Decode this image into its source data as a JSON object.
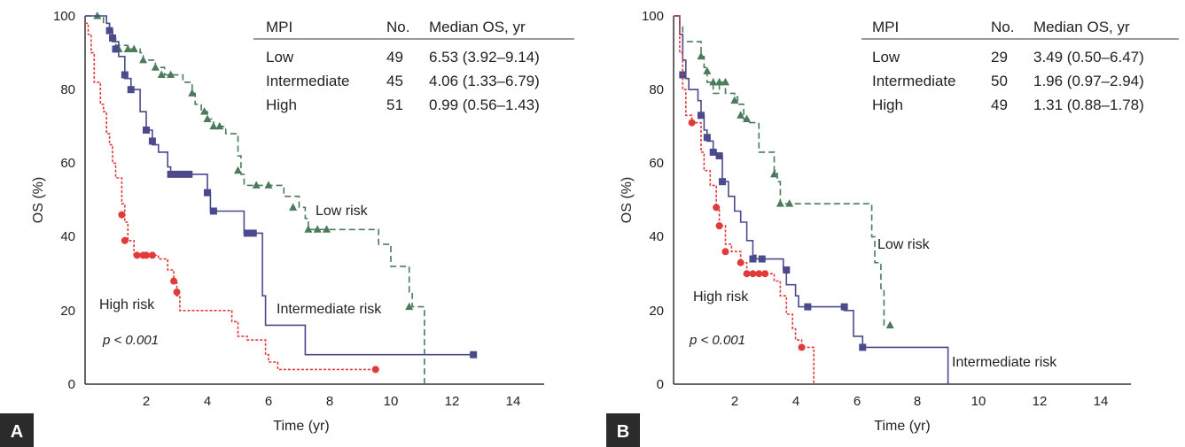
{
  "chart_data": [
    {
      "type": "line",
      "subtype": "kaplan-meier",
      "panel": "A",
      "xlabel": "Time (yr)",
      "ylabel": "OS (%)",
      "xlim": [
        0,
        15
      ],
      "ylim": [
        0,
        100
      ],
      "xticks": [
        2,
        4,
        6,
        8,
        10,
        12,
        14
      ],
      "yticks": [
        0,
        20,
        40,
        60,
        80,
        100
      ],
      "table": {
        "headers": [
          "MPI",
          "No.",
          "Median OS, yr"
        ],
        "rows": [
          [
            "Low",
            "49",
            "6.53 (3.92–9.14)"
          ],
          [
            "Intermediate",
            "45",
            "4.06 (1.33–6.79)"
          ],
          [
            "High",
            "51",
            "0.99 (0.56–1.43)"
          ]
        ]
      },
      "pvalue": "p < 0.001",
      "annotations": [
        "Low risk",
        "Intermediate risk",
        "High risk"
      ],
      "series": [
        {
          "name": "Low risk",
          "color": "#4a7b5a",
          "style": "dashed",
          "marker": "triangle",
          "steps": [
            [
              0,
              100
            ],
            [
              0.5,
              100
            ],
            [
              0.6,
              98
            ],
            [
              0.8,
              96
            ],
            [
              0.9,
              94
            ],
            [
              1.0,
              92
            ],
            [
              1.4,
              91
            ],
            [
              1.8,
              90
            ],
            [
              1.9,
              88
            ],
            [
              2.3,
              86
            ],
            [
              2.6,
              84
            ],
            [
              3.2,
              82
            ],
            [
              3.5,
              79
            ],
            [
              3.6,
              76
            ],
            [
              3.8,
              74
            ],
            [
              4.0,
              72
            ],
            [
              4.2,
              70
            ],
            [
              4.6,
              68
            ],
            [
              5.0,
              62
            ],
            [
              5.1,
              57
            ],
            [
              5.2,
              54
            ],
            [
              6.5,
              51
            ],
            [
              7.0,
              48
            ],
            [
              7.2,
              45
            ],
            [
              7.3,
              42
            ],
            [
              9.6,
              38
            ],
            [
              10.0,
              32
            ],
            [
              10.6,
              25
            ],
            [
              10.7,
              21
            ],
            [
              11.1,
              0
            ]
          ],
          "censors": [
            [
              0.4,
              100
            ],
            [
              1.1,
              91
            ],
            [
              1.4,
              91
            ],
            [
              1.6,
              91
            ],
            [
              1.9,
              88
            ],
            [
              2.3,
              86
            ],
            [
              2.5,
              84
            ],
            [
              2.8,
              84
            ],
            [
              3.5,
              79
            ],
            [
              3.9,
              74
            ],
            [
              4.0,
              72
            ],
            [
              4.2,
              70
            ],
            [
              4.4,
              70
            ],
            [
              5.0,
              58
            ],
            [
              5.6,
              54
            ],
            [
              6.0,
              54
            ],
            [
              6.8,
              48
            ],
            [
              7.3,
              42
            ],
            [
              7.6,
              42
            ],
            [
              7.9,
              42
            ],
            [
              10.6,
              21
            ]
          ]
        },
        {
          "name": "Intermediate risk",
          "color": "#4a4a8c",
          "style": "solid",
          "marker": "square",
          "steps": [
            [
              0,
              100
            ],
            [
              0.5,
              100
            ],
            [
              0.7,
              98
            ],
            [
              0.8,
              96
            ],
            [
              0.9,
              93
            ],
            [
              1.1,
              89
            ],
            [
              1.3,
              83
            ],
            [
              1.5,
              80
            ],
            [
              1.8,
              74
            ],
            [
              2.0,
              69
            ],
            [
              2.2,
              65
            ],
            [
              2.4,
              63
            ],
            [
              2.7,
              59
            ],
            [
              2.8,
              57
            ],
            [
              4.0,
              52
            ],
            [
              4.1,
              47
            ],
            [
              5.2,
              41
            ],
            [
              5.8,
              24
            ],
            [
              5.9,
              16
            ],
            [
              7.2,
              8
            ],
            [
              12.8,
              8
            ]
          ],
          "censors": [
            [
              0.8,
              96
            ],
            [
              0.9,
              94
            ],
            [
              1.0,
              91
            ],
            [
              1.3,
              84
            ],
            [
              1.5,
              80
            ],
            [
              2.0,
              69
            ],
            [
              2.2,
              66
            ],
            [
              2.8,
              57
            ],
            [
              3.0,
              57
            ],
            [
              3.2,
              57
            ],
            [
              3.4,
              57
            ],
            [
              4.0,
              52
            ],
            [
              4.2,
              47
            ],
            [
              5.3,
              41
            ],
            [
              5.5,
              41
            ],
            [
              12.7,
              8
            ]
          ]
        },
        {
          "name": "High risk",
          "color": "#e03a3a",
          "style": "dotted",
          "marker": "circle",
          "steps": [
            [
              0,
              98
            ],
            [
              0.1,
              95
            ],
            [
              0.2,
              90
            ],
            [
              0.3,
              82
            ],
            [
              0.5,
              76
            ],
            [
              0.6,
              74
            ],
            [
              0.7,
              68
            ],
            [
              0.8,
              65
            ],
            [
              0.9,
              60
            ],
            [
              1.0,
              56
            ],
            [
              1.2,
              49
            ],
            [
              1.3,
              44
            ],
            [
              1.4,
              39
            ],
            [
              1.6,
              35
            ],
            [
              2.4,
              34
            ],
            [
              2.7,
              31
            ],
            [
              2.9,
              28
            ],
            [
              3.0,
              24
            ],
            [
              3.1,
              20
            ],
            [
              4.8,
              17
            ],
            [
              5.0,
              13
            ],
            [
              5.3,
              12
            ],
            [
              5.9,
              8
            ],
            [
              6.0,
              6
            ],
            [
              6.3,
              4
            ],
            [
              9.5,
              4
            ]
          ],
          "censors": [
            [
              1.2,
              46
            ],
            [
              1.3,
              39
            ],
            [
              1.7,
              35
            ],
            [
              1.9,
              35
            ],
            [
              2.0,
              35
            ],
            [
              2.2,
              35
            ],
            [
              2.9,
              28
            ],
            [
              3.0,
              25
            ],
            [
              9.5,
              4
            ]
          ]
        }
      ]
    },
    {
      "type": "line",
      "subtype": "kaplan-meier",
      "panel": "B",
      "xlabel": "Time (yr)",
      "ylabel": "OS (%)",
      "xlim": [
        0,
        15
      ],
      "ylim": [
        0,
        100
      ],
      "xticks": [
        2,
        4,
        6,
        8,
        10,
        12,
        14
      ],
      "yticks": [
        0,
        20,
        40,
        60,
        80,
        100
      ],
      "table": {
        "headers": [
          "MPI",
          "No.",
          "Median OS, yr"
        ],
        "rows": [
          [
            "Low",
            "29",
            "3.49 (0.50–6.47)"
          ],
          [
            "Intermediate",
            "50",
            "1.96 (0.97–2.94)"
          ],
          [
            "High",
            "49",
            "1.31 (0.88–1.78)"
          ]
        ]
      },
      "pvalue": "p < 0.001",
      "annotations": [
        "Low risk",
        "Intermediate risk",
        "High risk"
      ],
      "series": [
        {
          "name": "Low risk",
          "color": "#4a7b5a",
          "style": "dashed",
          "marker": "triangle",
          "steps": [
            [
              0,
              100
            ],
            [
              0.2,
              97
            ],
            [
              0.3,
              93
            ],
            [
              0.9,
              89
            ],
            [
              1.0,
              86
            ],
            [
              1.1,
              82
            ],
            [
              1.3,
              79
            ],
            [
              1.5,
              82
            ],
            [
              1.7,
              79
            ],
            [
              2.0,
              78
            ],
            [
              2.1,
              76
            ],
            [
              2.3,
              72
            ],
            [
              2.5,
              71
            ],
            [
              2.6,
              71
            ],
            [
              2.8,
              63
            ],
            [
              3.3,
              58
            ],
            [
              3.4,
              55
            ],
            [
              3.5,
              49
            ],
            [
              6.5,
              40
            ],
            [
              6.6,
              33
            ],
            [
              6.8,
              26
            ],
            [
              6.9,
              16
            ],
            [
              7.1,
              16
            ]
          ],
          "censors": [
            [
              0.9,
              89
            ],
            [
              1.1,
              85
            ],
            [
              1.3,
              82
            ],
            [
              1.5,
              82
            ],
            [
              1.7,
              82
            ],
            [
              2.0,
              77
            ],
            [
              2.2,
              73
            ],
            [
              2.4,
              72
            ],
            [
              3.3,
              57
            ],
            [
              3.5,
              49
            ],
            [
              3.8,
              49
            ],
            [
              7.1,
              16
            ]
          ]
        },
        {
          "name": "Intermediate risk",
          "color": "#4a4a8c",
          "style": "solid",
          "marker": "square",
          "steps": [
            [
              0,
              100
            ],
            [
              0.2,
              95
            ],
            [
              0.3,
              88
            ],
            [
              0.4,
              83
            ],
            [
              0.5,
              80
            ],
            [
              0.8,
              77
            ],
            [
              0.9,
              73
            ],
            [
              1.0,
              69
            ],
            [
              1.1,
              66
            ],
            [
              1.3,
              63
            ],
            [
              1.4,
              62
            ],
            [
              1.6,
              55
            ],
            [
              1.8,
              51
            ],
            [
              2.0,
              47
            ],
            [
              2.2,
              44
            ],
            [
              2.4,
              39
            ],
            [
              2.6,
              35
            ],
            [
              2.7,
              34
            ],
            [
              3.6,
              31
            ],
            [
              3.7,
              27
            ],
            [
              4.0,
              24
            ],
            [
              4.1,
              21
            ],
            [
              5.6,
              20
            ],
            [
              5.9,
              13
            ],
            [
              6.2,
              10
            ],
            [
              9.0,
              0
            ]
          ],
          "censors": [
            [
              0.3,
              84
            ],
            [
              0.9,
              73
            ],
            [
              1.1,
              67
            ],
            [
              1.3,
              63
            ],
            [
              1.5,
              62
            ],
            [
              1.6,
              55
            ],
            [
              2.6,
              34
            ],
            [
              2.9,
              34
            ],
            [
              3.7,
              31
            ],
            [
              4.4,
              21
            ],
            [
              5.6,
              21
            ],
            [
              6.2,
              10
            ]
          ]
        },
        {
          "name": "High risk",
          "color": "#e03a3a",
          "style": "dotted",
          "marker": "circle",
          "steps": [
            [
              0,
              100
            ],
            [
              0.2,
              90
            ],
            [
              0.3,
              80
            ],
            [
              0.4,
              73
            ],
            [
              0.6,
              71
            ],
            [
              0.9,
              63
            ],
            [
              1.0,
              58
            ],
            [
              1.2,
              54
            ],
            [
              1.4,
              48
            ],
            [
              1.5,
              43
            ],
            [
              1.7,
              38
            ],
            [
              1.9,
              36
            ],
            [
              2.2,
              33
            ],
            [
              2.4,
              30
            ],
            [
              3.3,
              28
            ],
            [
              3.5,
              24
            ],
            [
              3.7,
              19
            ],
            [
              3.9,
              15
            ],
            [
              4.0,
              12
            ],
            [
              4.2,
              10
            ],
            [
              4.6,
              7
            ],
            [
              4.6,
              0
            ]
          ],
          "censors": [
            [
              0.6,
              71
            ],
            [
              1.4,
              48
            ],
            [
              1.5,
              43
            ],
            [
              1.7,
              36
            ],
            [
              2.2,
              33
            ],
            [
              2.4,
              30
            ],
            [
              2.6,
              30
            ],
            [
              2.8,
              30
            ],
            [
              3.0,
              30
            ],
            [
              4.2,
              10
            ]
          ]
        }
      ]
    }
  ]
}
